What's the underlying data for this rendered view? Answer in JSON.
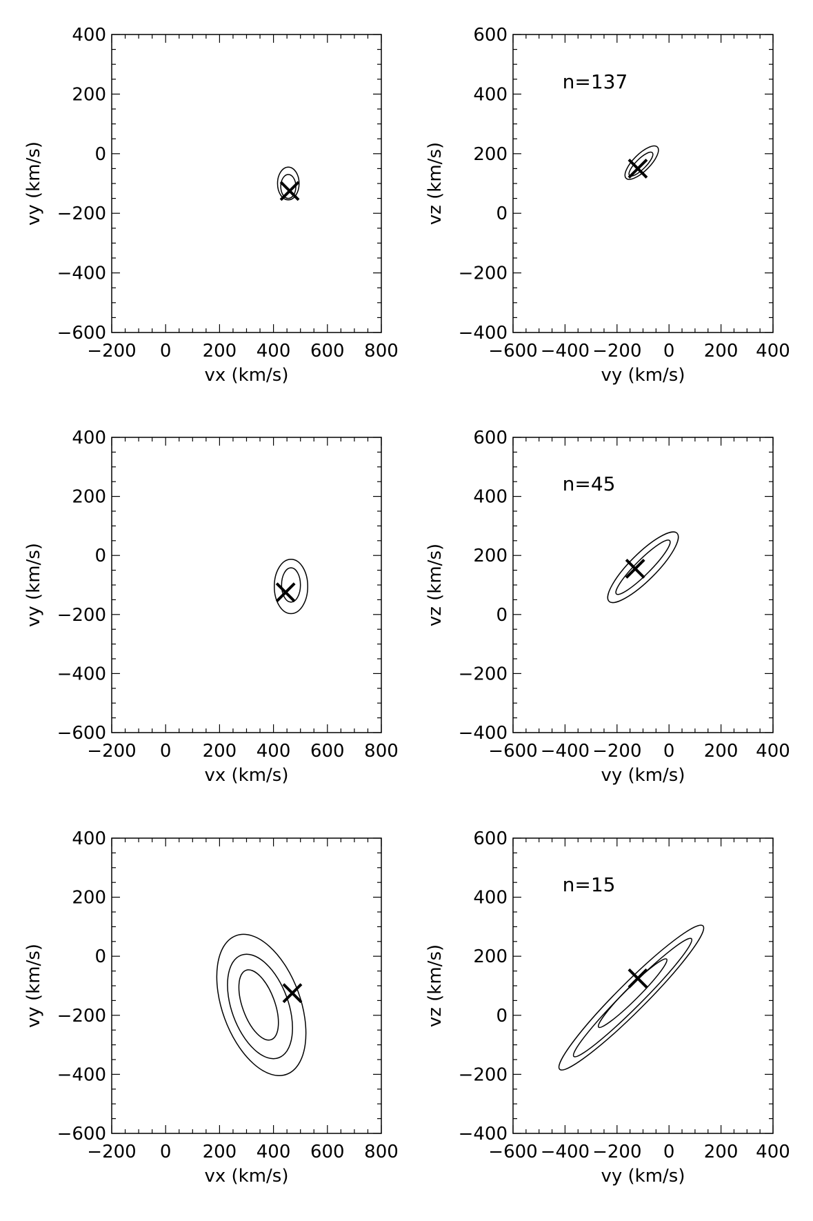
{
  "chart_data": [
    {
      "type": "contour",
      "xlabel": "vx (km/s)",
      "ylabel": "vy (km/s)",
      "xlim": [
        -200,
        800
      ],
      "ylim": [
        -600,
        400
      ],
      "xticks": [
        -200,
        0,
        200,
        400,
        600,
        800
      ],
      "yticks": [
        -600,
        -400,
        -200,
        0,
        200,
        400
      ],
      "xticklabels": [
        "−200",
        "0",
        "200",
        "400",
        "600",
        "800"
      ],
      "yticklabels": [
        "−600",
        "−400",
        "−200",
        "0",
        "200",
        "400"
      ],
      "annotation": "",
      "marker": {
        "x": 460,
        "y": -125
      },
      "contours": [
        {
          "cx": 455,
          "cy": -100,
          "rx": 40,
          "ry": 55,
          "rot": 0
        },
        {
          "cx": 455,
          "cy": -110,
          "rx": 28,
          "ry": 40,
          "rot": 0
        }
      ]
    },
    {
      "type": "contour",
      "xlabel": "vy (km/s)",
      "ylabel": "vz (km/s)",
      "xlim": [
        -600,
        400
      ],
      "ylim": [
        -400,
        600
      ],
      "xticks": [
        -600,
        -400,
        -200,
        0,
        200,
        400
      ],
      "yticks": [
        -400,
        -200,
        0,
        200,
        400,
        600
      ],
      "xticklabels": [
        "−600",
        "−400",
        "−200",
        "0",
        "200",
        "400"
      ],
      "yticklabels": [
        "−400",
        "−200",
        "0",
        "200",
        "400",
        "600"
      ],
      "annotation": "n=137",
      "marker": {
        "x": -120,
        "y": 150
      },
      "contours": [
        {
          "cx": -105,
          "cy": 170,
          "rx": 85,
          "ry": 28,
          "rot": 45
        },
        {
          "cx": -108,
          "cy": 165,
          "rx": 62,
          "ry": 17,
          "rot": 45
        }
      ]
    },
    {
      "type": "contour",
      "xlabel": "vx (km/s)",
      "ylabel": "vy (km/s)",
      "xlim": [
        -200,
        800
      ],
      "ylim": [
        -600,
        400
      ],
      "xticks": [
        -200,
        0,
        200,
        400,
        600,
        800
      ],
      "yticks": [
        -600,
        -400,
        -200,
        0,
        200,
        400
      ],
      "xticklabels": [
        "−200",
        "0",
        "200",
        "400",
        "600",
        "800"
      ],
      "yticklabels": [
        "−600",
        "−400",
        "−200",
        "0",
        "200",
        "400"
      ],
      "annotation": "",
      "marker": {
        "x": 445,
        "y": -125
      },
      "contours": [
        {
          "cx": 465,
          "cy": -105,
          "rx": 62,
          "ry": 92,
          "rot": 0
        },
        {
          "cx": 465,
          "cy": -100,
          "rx": 35,
          "ry": 58,
          "rot": 0
        }
      ]
    },
    {
      "type": "contour",
      "xlabel": "vy (km/s)",
      "ylabel": "vz (km/s)",
      "xlim": [
        -600,
        400
      ],
      "ylim": [
        -400,
        600
      ],
      "xticks": [
        -600,
        -400,
        -200,
        0,
        200,
        400
      ],
      "yticks": [
        -400,
        -200,
        0,
        200,
        400,
        600
      ],
      "xticklabels": [
        "−600",
        "−400",
        "−200",
        "0",
        "200",
        "400"
      ],
      "yticklabels": [
        "−400",
        "−200",
        "0",
        "200",
        "400",
        "600"
      ],
      "annotation": "n=45",
      "marker": {
        "x": -130,
        "y": 155
      },
      "contours": [
        {
          "cx": -100,
          "cy": 160,
          "rx": 185,
          "ry": 45,
          "rot": 45
        },
        {
          "cx": -100,
          "cy": 160,
          "rx": 145,
          "ry": 25,
          "rot": 45
        }
      ]
    },
    {
      "type": "contour",
      "xlabel": "vx (km/s)",
      "ylabel": "vy (km/s)",
      "xlim": [
        -200,
        800
      ],
      "ylim": [
        -600,
        400
      ],
      "xticks": [
        -200,
        0,
        200,
        400,
        600,
        800
      ],
      "yticks": [
        -600,
        -400,
        -200,
        0,
        200,
        400
      ],
      "xticklabels": [
        "−200",
        "0",
        "200",
        "400",
        "600",
        "800"
      ],
      "yticklabels": [
        "−600",
        "−400",
        "−200",
        "0",
        "200",
        "400"
      ],
      "annotation": "",
      "marker": {
        "x": 470,
        "y": -125
      },
      "contours": [
        {
          "cx": 355,
          "cy": -165,
          "rx": 145,
          "ry": 250,
          "rot": 20
        },
        {
          "cx": 350,
          "cy": -170,
          "rx": 105,
          "ry": 185,
          "rot": 20
        },
        {
          "cx": 345,
          "cy": -165,
          "rx": 60,
          "ry": 125,
          "rot": 20
        }
      ]
    },
    {
      "type": "contour",
      "xlabel": "vy (km/s)",
      "ylabel": "vz (km/s)",
      "xlim": [
        -600,
        400
      ],
      "ylim": [
        -400,
        600
      ],
      "xticks": [
        -600,
        -400,
        -200,
        0,
        200,
        400
      ],
      "yticks": [
        -400,
        -200,
        0,
        200,
        400,
        600
      ],
      "xticklabels": [
        "−600",
        "−400",
        "−200",
        "0",
        "200",
        "400"
      ],
      "yticklabels": [
        "−400",
        "−200",
        "0",
        "200",
        "400",
        "600"
      ],
      "annotation": "n=15",
      "marker": {
        "x": -120,
        "y": 125
      },
      "contours": [
        {
          "cx": -145,
          "cy": 60,
          "rx": 390,
          "ry": 48,
          "rot": 45
        },
        {
          "cx": -140,
          "cy": 60,
          "rx": 320,
          "ry": 32,
          "rot": 45
        },
        {
          "cx": -140,
          "cy": 75,
          "rx": 185,
          "ry": 22,
          "rot": 45
        }
      ]
    }
  ]
}
